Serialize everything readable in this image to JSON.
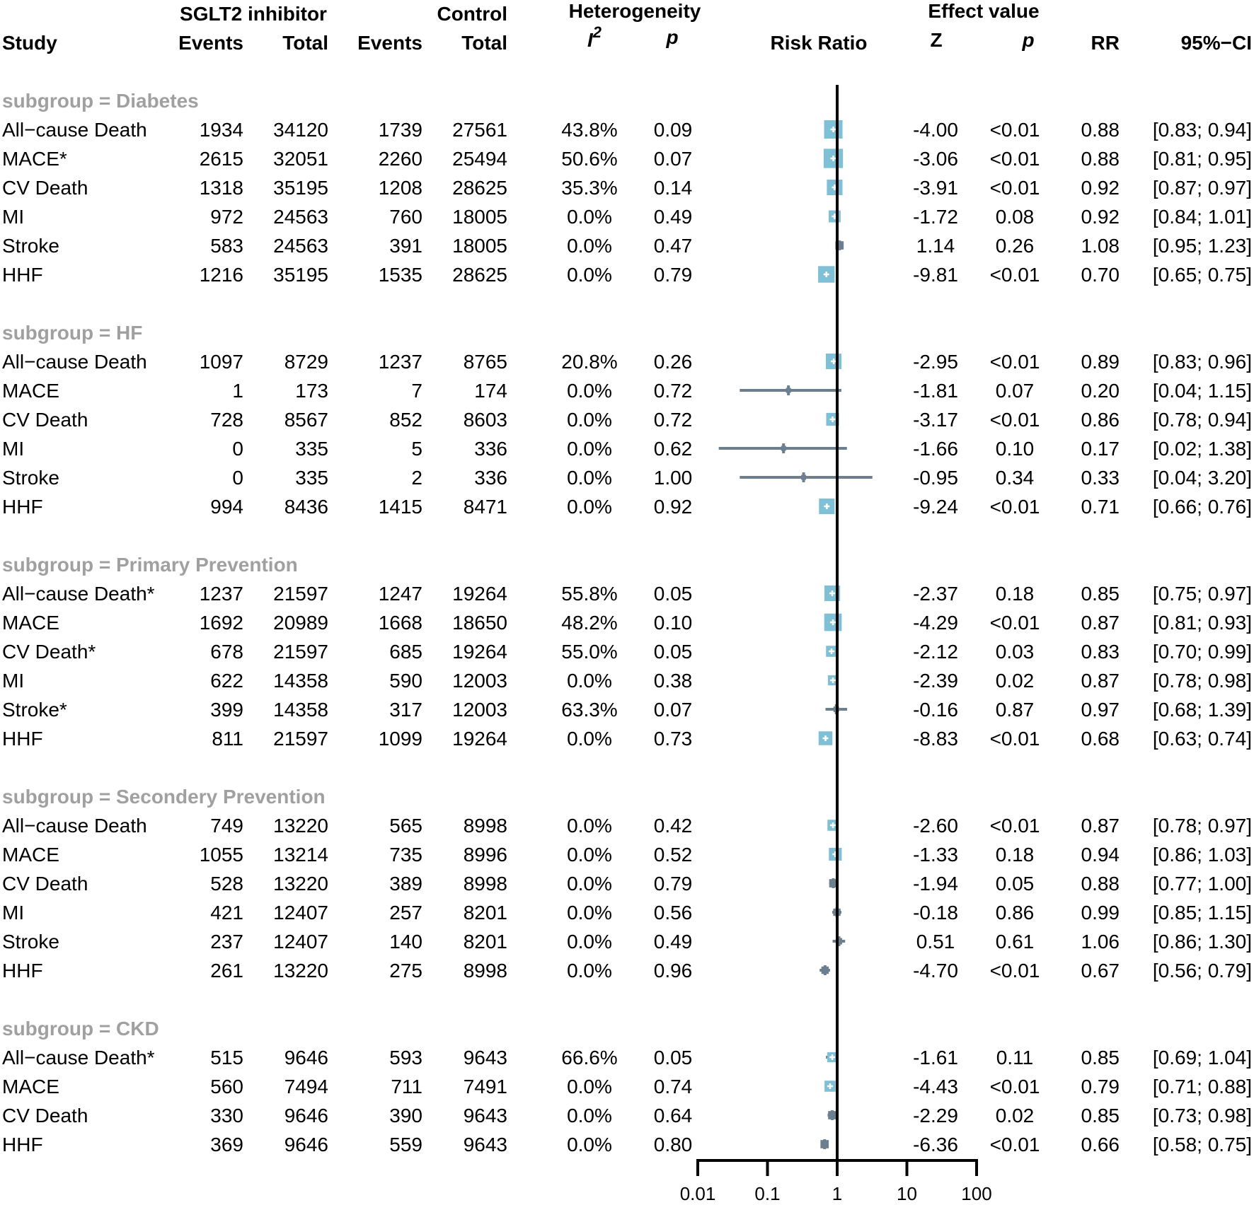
{
  "chart_data": {
    "type": "forest",
    "headers": {
      "study": "Study",
      "group_sglt2": "SGLT2 inhibitor",
      "group_control": "Control",
      "group_heterogeneity": "Heterogeneity",
      "group_effect": "Effect value",
      "events": "Events",
      "total": "Total",
      "i2": "I",
      "i2_sup": "2",
      "p": "p",
      "risk_ratio": "Risk Ratio",
      "z": "Z",
      "rr": "RR",
      "ci": "95%−CI"
    },
    "x_axis": {
      "scale": "log",
      "ticks": [
        0.01,
        0.1,
        1,
        10,
        100
      ],
      "tick_labels": [
        "0.01",
        "0.1",
        "1",
        "10",
        "100"
      ],
      "reference": 1
    },
    "colors": {
      "box": "#7fc0d6",
      "line": "#6b7f8f",
      "subgroup": "#a0a0a0",
      "axis": "#000000"
    },
    "subgroups": [
      {
        "label": "subgroup = Diabetes",
        "rows": [
          {
            "study": "All−cause Death",
            "e1": "1934",
            "t1": "34120",
            "e2": "1739",
            "t2": "27561",
            "i2": "43.8%",
            "ph": "0.09",
            "z": "-4.00",
            "pe": "<0.01",
            "rr": "0.88",
            "ci": "[0.83; 0.94]",
            "rr_v": 0.88,
            "lo": 0.83,
            "hi": 0.94,
            "w": 1.0
          },
          {
            "study": "MACE*",
            "e1": "2615",
            "t1": "32051",
            "e2": "2260",
            "t2": "25494",
            "i2": "50.6%",
            "ph": "0.07",
            "z": "-3.06",
            "pe": "<0.01",
            "rr": "0.88",
            "ci": "[0.81; 0.95]",
            "rr_v": 0.88,
            "lo": 0.81,
            "hi": 0.95,
            "w": 1.05
          },
          {
            "study": "CV Death",
            "e1": "1318",
            "t1": "35195",
            "e2": "1208",
            "t2": "28625",
            "i2": "35.3%",
            "ph": "0.14",
            "z": "-3.91",
            "pe": "<0.01",
            "rr": "0.92",
            "ci": "[0.87; 0.97]",
            "rr_v": 0.92,
            "lo": 0.87,
            "hi": 0.97,
            "w": 0.85
          },
          {
            "study": "MI",
            "e1": "972",
            "t1": "24563",
            "e2": "760",
            "t2": "18005",
            "i2": "0.0%",
            "ph": "0.49",
            "z": "-1.72",
            "pe": "0.08",
            "rr": "0.92",
            "ci": "[0.84; 1.01]",
            "rr_v": 0.92,
            "lo": 0.84,
            "hi": 1.01,
            "w": 0.65
          },
          {
            "study": "Stroke",
            "e1": "583",
            "t1": "24563",
            "e2": "391",
            "t2": "18005",
            "i2": "0.0%",
            "ph": "0.47",
            "z": "1.14",
            "pe": "0.26",
            "rr": "1.08",
            "ci": "[0.95; 1.23]",
            "rr_v": 1.08,
            "lo": 0.95,
            "hi": 1.23,
            "w": 0.45
          },
          {
            "study": "HHF",
            "e1": "1216",
            "t1": "35195",
            "e2": "1535",
            "t2": "28625",
            "i2": "0.0%",
            "ph": "0.79",
            "z": "-9.81",
            "pe": "<0.01",
            "rr": "0.70",
            "ci": "[0.65; 0.75]",
            "rr_v": 0.7,
            "lo": 0.65,
            "hi": 0.75,
            "w": 0.9
          }
        ]
      },
      {
        "label": "subgroup = HF",
        "rows": [
          {
            "study": "All−cause Death",
            "e1": "1097",
            "t1": "8729",
            "e2": "1237",
            "t2": "8765",
            "i2": "20.8%",
            "ph": "0.26",
            "z": "-2.95",
            "pe": "<0.01",
            "rr": "0.89",
            "ci": "[0.83; 0.96]",
            "rr_v": 0.89,
            "lo": 0.83,
            "hi": 0.96,
            "w": 0.85
          },
          {
            "study": "MACE",
            "e1": "1",
            "t1": "173",
            "e2": "7",
            "t2": "174",
            "i2": "0.0%",
            "ph": "0.72",
            "z": "-1.81",
            "pe": "0.07",
            "rr": "0.20",
            "ci": "[0.04; 1.15]",
            "rr_v": 0.2,
            "lo": 0.04,
            "hi": 1.15,
            "w": 0.08
          },
          {
            "study": "CV Death",
            "e1": "728",
            "t1": "8567",
            "e2": "852",
            "t2": "8603",
            "i2": "0.0%",
            "ph": "0.72",
            "z": "-3.17",
            "pe": "<0.01",
            "rr": "0.86",
            "ci": "[0.78; 0.94]",
            "rr_v": 0.86,
            "lo": 0.78,
            "hi": 0.94,
            "w": 0.7
          },
          {
            "study": "MI",
            "e1": "0",
            "t1": "335",
            "e2": "5",
            "t2": "336",
            "i2": "0.0%",
            "ph": "0.62",
            "z": "-1.66",
            "pe": "0.10",
            "rr": "0.17",
            "ci": "[0.02; 1.38]",
            "rr_v": 0.17,
            "lo": 0.02,
            "hi": 1.38,
            "w": 0.22
          },
          {
            "study": "Stroke",
            "e1": "0",
            "t1": "335",
            "e2": "2",
            "t2": "336",
            "i2": "0.0%",
            "ph": "1.00",
            "z": "-0.95",
            "pe": "0.34",
            "rr": "0.33",
            "ci": "[0.04; 3.20]",
            "rr_v": 0.33,
            "lo": 0.04,
            "hi": 3.2,
            "w": 0.22
          },
          {
            "study": "HHF",
            "e1": "994",
            "t1": "8436",
            "e2": "1415",
            "t2": "8471",
            "i2": "0.0%",
            "ph": "0.92",
            "z": "-9.24",
            "pe": "<0.01",
            "rr": "0.71",
            "ci": "[0.66; 0.76]",
            "rr_v": 0.71,
            "lo": 0.66,
            "hi": 0.76,
            "w": 0.85
          }
        ]
      },
      {
        "label": "subgroup = Primary Prevention",
        "rows": [
          {
            "study": "All−cause Death*",
            "e1": "1237",
            "t1": "21597",
            "e2": "1247",
            "t2": "19264",
            "i2": "55.8%",
            "ph": "0.05",
            "z": "-2.37",
            "pe": "0.18",
            "rr": "0.85",
            "ci": "[0.75; 0.97]",
            "rr_v": 0.85,
            "lo": 0.75,
            "hi": 0.97,
            "w": 0.85
          },
          {
            "study": "MACE",
            "e1": "1692",
            "t1": "20989",
            "e2": "1668",
            "t2": "18650",
            "i2": "48.2%",
            "ph": "0.10",
            "z": "-4.29",
            "pe": "<0.01",
            "rr": "0.87",
            "ci": "[0.81; 0.93]",
            "rr_v": 0.87,
            "lo": 0.81,
            "hi": 0.93,
            "w": 0.95
          },
          {
            "study": "CV Death*",
            "e1": "678",
            "t1": "21597",
            "e2": "685",
            "t2": "19264",
            "i2": "55.0%",
            "ph": "0.05",
            "z": "-2.12",
            "pe": "0.03",
            "rr": "0.83",
            "ci": "[0.70; 0.99]",
            "rr_v": 0.83,
            "lo": 0.7,
            "hi": 0.99,
            "w": 0.6
          },
          {
            "study": "MI",
            "e1": "622",
            "t1": "14358",
            "e2": "590",
            "t2": "12003",
            "i2": "0.0%",
            "ph": "0.38",
            "z": "-2.39",
            "pe": "0.02",
            "rr": "0.87",
            "ci": "[0.78; 0.98]",
            "rr_v": 0.87,
            "lo": 0.78,
            "hi": 0.98,
            "w": 0.55
          },
          {
            "study": "Stroke*",
            "e1": "399",
            "t1": "14358",
            "e2": "317",
            "t2": "12003",
            "i2": "63.3%",
            "ph": "0.07",
            "z": "-0.16",
            "pe": "0.87",
            "rr": "0.97",
            "ci": "[0.68; 1.39]",
            "rr_v": 0.97,
            "lo": 0.68,
            "hi": 1.39,
            "w": 0.3
          },
          {
            "study": "HHF",
            "e1": "811",
            "t1": "21597",
            "e2": "1099",
            "t2": "19264",
            "i2": "0.0%",
            "ph": "0.73",
            "z": "-8.83",
            "pe": "<0.01",
            "rr": "0.68",
            "ci": "[0.63; 0.74]",
            "rr_v": 0.68,
            "lo": 0.63,
            "hi": 0.74,
            "w": 0.75
          }
        ]
      },
      {
        "label": "subgroup = Secondery Prevention",
        "rows": [
          {
            "study": "All−cause Death",
            "e1": "749",
            "t1": "13220",
            "e2": "565",
            "t2": "8998",
            "i2": "0.0%",
            "ph": "0.42",
            "z": "-2.60",
            "pe": "<0.01",
            "rr": "0.87",
            "ci": "[0.78; 0.97]",
            "rr_v": 0.87,
            "lo": 0.78,
            "hi": 0.97,
            "w": 0.6
          },
          {
            "study": "MACE",
            "e1": "1055",
            "t1": "13214",
            "e2": "735",
            "t2": "8996",
            "i2": "0.0%",
            "ph": "0.52",
            "z": "-1.33",
            "pe": "0.18",
            "rr": "0.94",
            "ci": "[0.86; 1.03]",
            "rr_v": 0.94,
            "lo": 0.86,
            "hi": 1.03,
            "w": 0.7
          },
          {
            "study": "CV Death",
            "e1": "528",
            "t1": "13220",
            "e2": "389",
            "t2": "8998",
            "i2": "0.0%",
            "ph": "0.79",
            "z": "-1.94",
            "pe": "0.05",
            "rr": "0.88",
            "ci": "[0.77; 1.00]",
            "rr_v": 0.88,
            "lo": 0.77,
            "hi": 1.0,
            "w": 0.45
          },
          {
            "study": "MI",
            "e1": "421",
            "t1": "12407",
            "e2": "257",
            "t2": "8201",
            "i2": "0.0%",
            "ph": "0.56",
            "z": "-0.18",
            "pe": "0.86",
            "rr": "0.99",
            "ci": "[0.85; 1.15]",
            "rr_v": 0.99,
            "lo": 0.85,
            "hi": 1.15,
            "w": 0.4
          },
          {
            "study": "Stroke",
            "e1": "237",
            "t1": "12407",
            "e2": "140",
            "t2": "8201",
            "i2": "0.0%",
            "ph": "0.49",
            "z": "0.51",
            "pe": "0.61",
            "rr": "1.06",
            "ci": "[0.86; 1.30]",
            "rr_v": 1.06,
            "lo": 0.86,
            "hi": 1.3,
            "w": 0.35
          },
          {
            "study": "HHF",
            "e1": "261",
            "t1": "13220",
            "e2": "275",
            "t2": "8998",
            "i2": "0.0%",
            "ph": "0.96",
            "z": "-4.70",
            "pe": "<0.01",
            "rr": "0.67",
            "ci": "[0.56; 0.79]",
            "rr_v": 0.67,
            "lo": 0.56,
            "hi": 0.79,
            "w": 0.4
          }
        ]
      },
      {
        "label": "subgroup = CKD",
        "rows": [
          {
            "study": "All−cause Death*",
            "e1": "515",
            "t1": "9646",
            "e2": "593",
            "t2": "9643",
            "i2": "66.6%",
            "ph": "0.05",
            "z": "-1.61",
            "pe": "0.11",
            "rr": "0.85",
            "ci": "[0.69; 1.04]",
            "rr_v": 0.85,
            "lo": 0.69,
            "hi": 1.04,
            "w": 0.55
          },
          {
            "study": "MACE",
            "e1": "560",
            "t1": "7494",
            "e2": "711",
            "t2": "7491",
            "i2": "0.0%",
            "ph": "0.74",
            "z": "-4.43",
            "pe": "<0.01",
            "rr": "0.79",
            "ci": "[0.71; 0.88]",
            "rr_v": 0.79,
            "lo": 0.71,
            "hi": 0.88,
            "w": 0.6
          },
          {
            "study": "CV Death",
            "e1": "330",
            "t1": "9646",
            "e2": "390",
            "t2": "9643",
            "i2": "0.0%",
            "ph": "0.64",
            "z": "-2.29",
            "pe": "0.02",
            "rr": "0.85",
            "ci": "[0.73; 0.98]",
            "rr_v": 0.85,
            "lo": 0.73,
            "hi": 0.98,
            "w": 0.45
          },
          {
            "study": "HHF",
            "e1": "369",
            "t1": "9646",
            "e2": "559",
            "t2": "9643",
            "i2": "0.0%",
            "ph": "0.80",
            "z": "-6.36",
            "pe": "<0.01",
            "rr": "0.66",
            "ci": "[0.58; 0.75]",
            "rr_v": 0.66,
            "lo": 0.58,
            "hi": 0.75,
            "w": 0.45
          }
        ]
      }
    ]
  }
}
